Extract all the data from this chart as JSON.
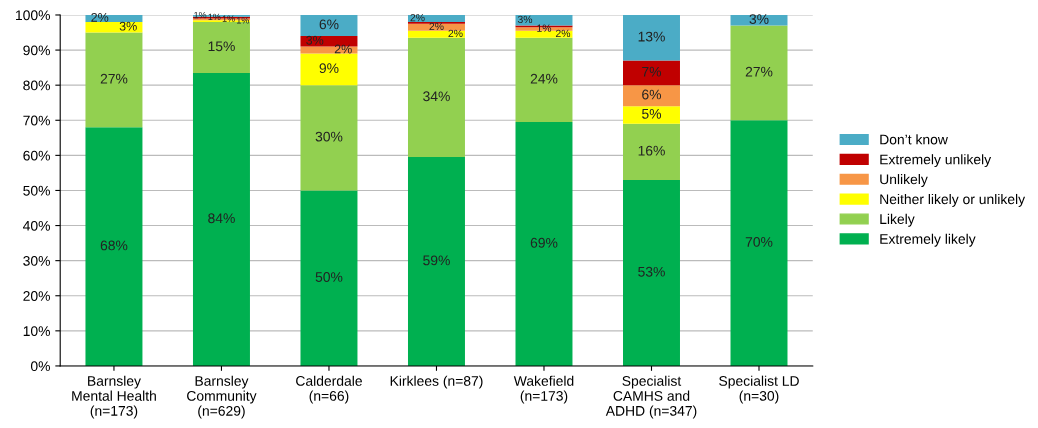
{
  "chart_data": {
    "type": "bar",
    "stacked": true,
    "categories": [
      "Barnsley\nMental Health\n(n=173)",
      "Barnsley\nCommunity\n(n=629)",
      "Calderdale\n(n=66)",
      "Kirklees (n=87)",
      "Wakefield\n(n=173)",
      "Specialist\nCAMHS and\nADHD (n=347)",
      "Specialist LD\n(n=30)"
    ],
    "series": [
      {
        "name": "Extremely likely",
        "color": "#00b050",
        "values": [
          68,
          83.5,
          50,
          59.5,
          69.5,
          53,
          70
        ],
        "value_labels": [
          "68%",
          "84%",
          "50%",
          "59%",
          "69%",
          "53%",
          "70%"
        ]
      },
      {
        "name": "Likely",
        "color": "#92d050",
        "values": [
          27,
          14.5,
          30,
          34,
          24,
          16,
          27
        ],
        "value_labels": [
          "27%",
          "15%",
          "30%",
          "34%",
          "24%",
          "16%",
          "27%"
        ]
      },
      {
        "name": "Neither likely or unlikely",
        "color": "#ffff00",
        "values": [
          3,
          0.5,
          9,
          2,
          2,
          5,
          0
        ],
        "value_labels": [
          "3%",
          "1%",
          "9%",
          "2%",
          "2%",
          "5%",
          null
        ]
      },
      {
        "name": "Unlikely",
        "color": "#f79646",
        "values": [
          0,
          0.5,
          2,
          2,
          1,
          6,
          0
        ],
        "value_labels": [
          null,
          "1%",
          "2%",
          "2%",
          "1%",
          "6%",
          null
        ]
      },
      {
        "name": "Extremely unlikely",
        "color": "#c00000",
        "values": [
          0,
          0.5,
          3,
          0.5,
          0.5,
          7,
          0
        ],
        "value_labels": [
          null,
          "1%",
          "3%",
          null,
          null,
          "7%",
          null
        ]
      },
      {
        "name": "Don’t know",
        "color": "#4bacc6",
        "values": [
          2,
          0.5,
          6,
          2,
          3,
          13,
          3
        ],
        "value_labels": [
          "2%",
          "1%",
          "6%",
          "2%",
          "3%",
          "13%",
          "3%"
        ]
      }
    ],
    "ylim": [
      0,
      100
    ],
    "yticks": [
      {
        "value": 0,
        "label": "0%"
      },
      {
        "value": 10,
        "label": "10%"
      },
      {
        "value": 20,
        "label": "20%"
      },
      {
        "value": 30,
        "label": "30%"
      },
      {
        "value": 40,
        "label": "40%"
      },
      {
        "value": 50,
        "label": "50%"
      },
      {
        "value": 60,
        "label": "60%"
      },
      {
        "value": 70,
        "label": "70%"
      },
      {
        "value": 80,
        "label": "80%"
      },
      {
        "value": 90,
        "label": "90%"
      },
      {
        "value": 100,
        "label": "100%"
      }
    ],
    "grid": "y",
    "legend": "right"
  }
}
